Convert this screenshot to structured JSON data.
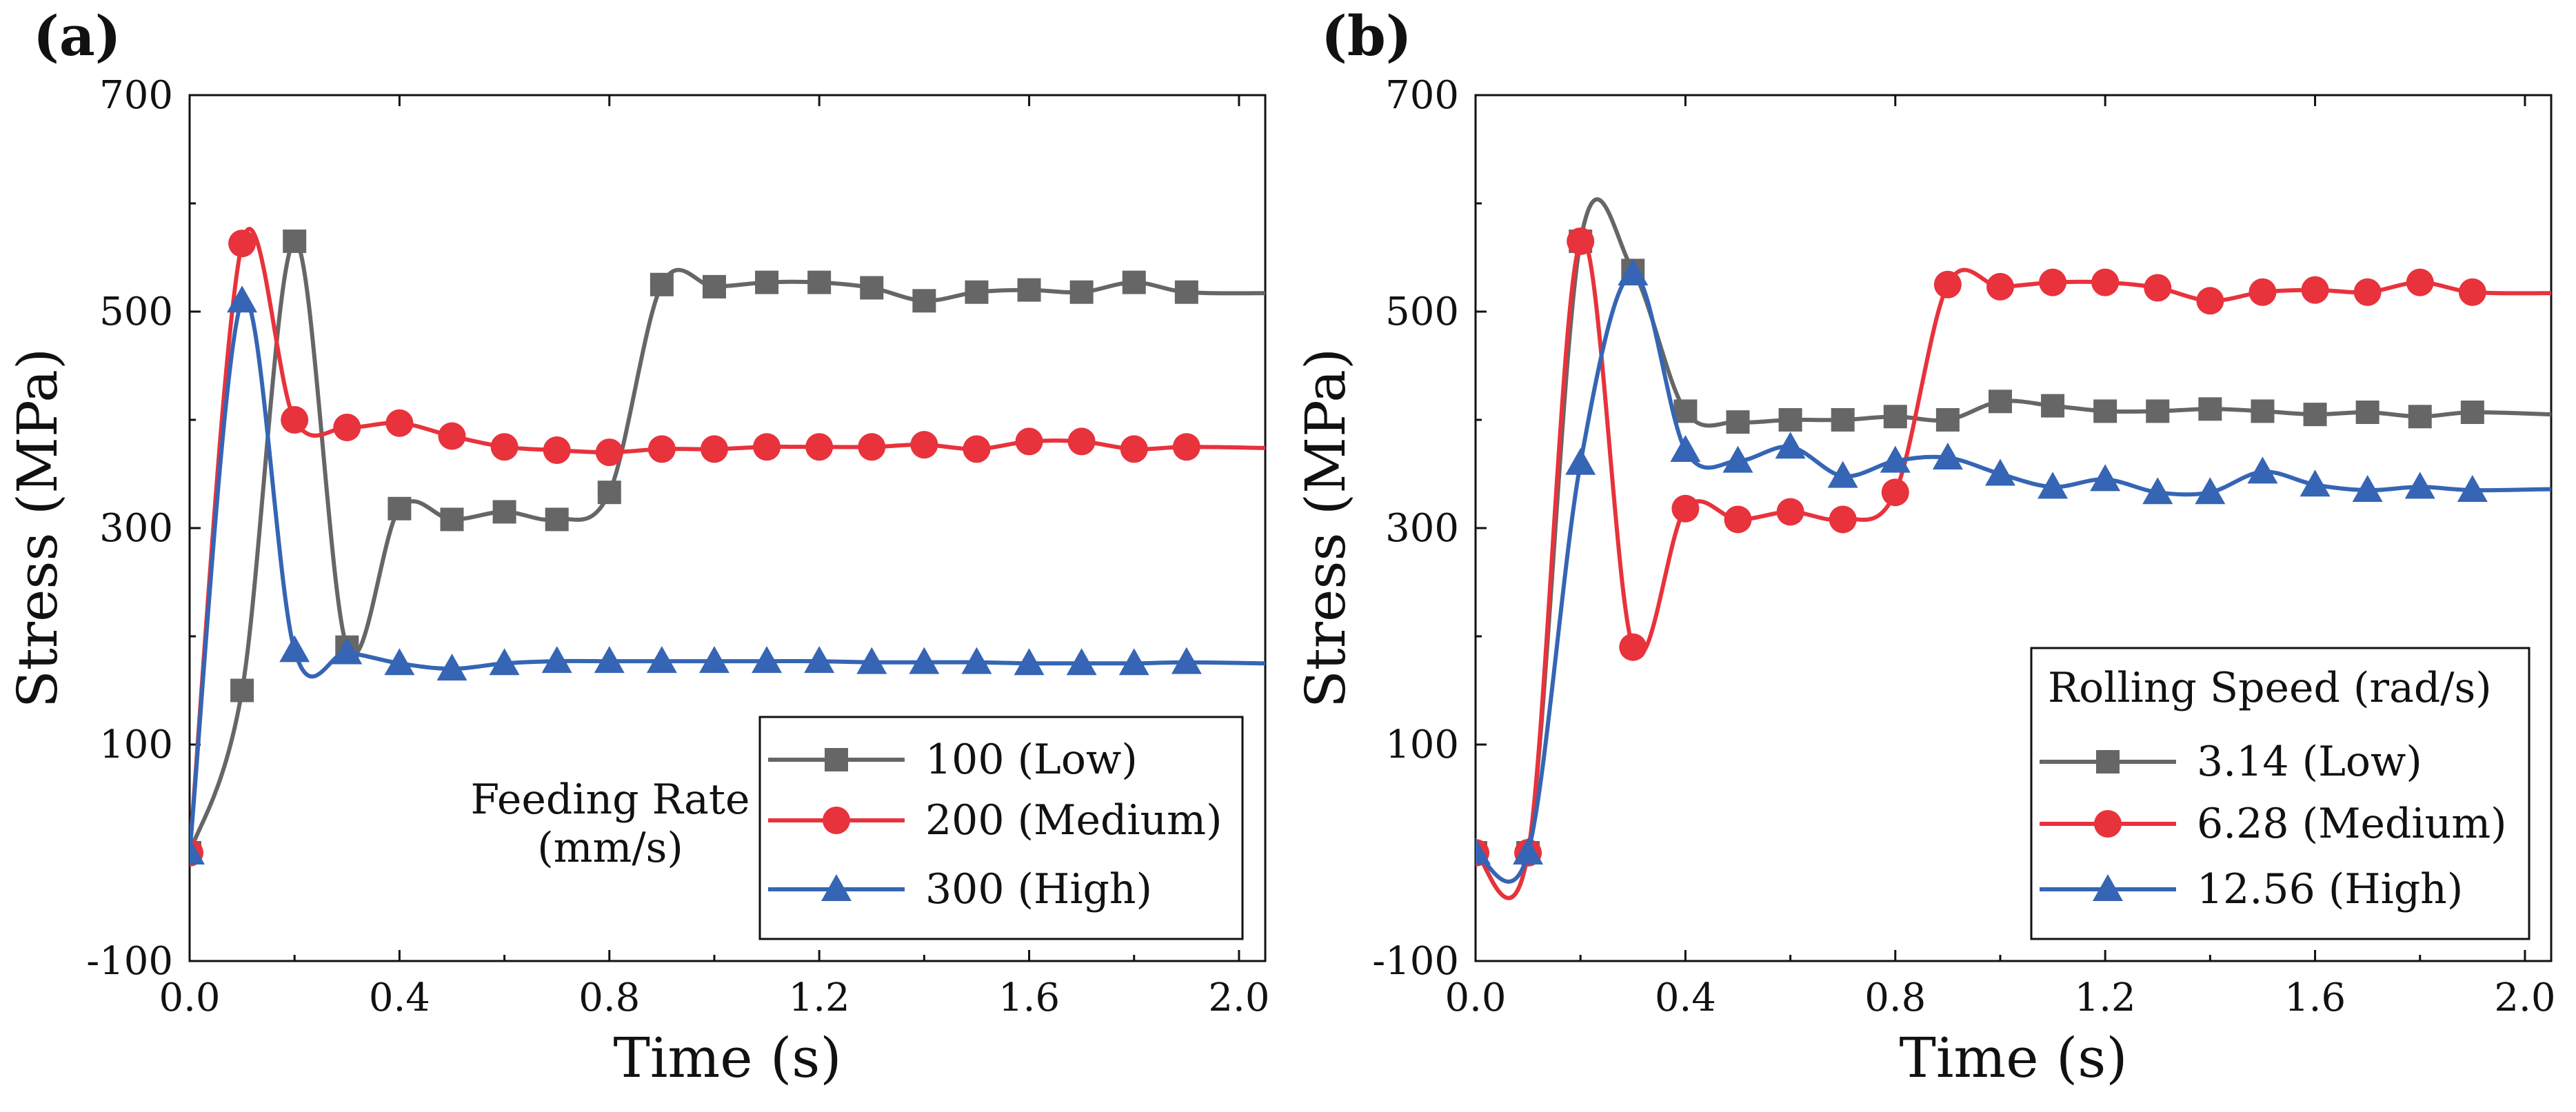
{
  "chart_data": [
    {
      "type": "line",
      "panel_label": "(a)",
      "xlabel": "Time (s)",
      "ylabel": "Stress (MPa)",
      "xlim": [
        0,
        2.05
      ],
      "ylim": [
        -100,
        700
      ],
      "xticks": [
        0,
        0.4,
        0.8,
        1.2,
        1.6,
        2.0
      ],
      "xtick_labels": [
        "0.0",
        "0.4",
        "0.8",
        "1.2",
        "1.6",
        "2.0"
      ],
      "yticks": [
        -100,
        100,
        300,
        500,
        700
      ],
      "ytick_labels": [
        "-100",
        "100",
        "300",
        "500",
        "700"
      ],
      "legend": {
        "title": "Feeding Rate (mm/s)",
        "title_lines": [
          "Feeding Rate",
          "(mm/s)"
        ],
        "title_position": "left",
        "placement": "bottom-right"
      },
      "series": [
        {
          "name": "100 (Low)",
          "color": "#666666",
          "marker": "square",
          "x": [
            0,
            0.1,
            0.2,
            0.3,
            0.4,
            0.5,
            0.6,
            0.7,
            0.8,
            0.9,
            1.0,
            1.1,
            1.2,
            1.3,
            1.4,
            1.5,
            1.6,
            1.7,
            1.8,
            1.9
          ],
          "values": [
            0,
            150,
            565,
            190,
            318,
            308,
            315,
            308,
            333,
            525,
            523,
            527,
            527,
            522,
            510,
            518,
            520,
            518,
            527,
            518
          ],
          "end_value": 517
        },
        {
          "name": "200 (Medium)",
          "color": "#e8323c",
          "marker": "circle",
          "x": [
            0,
            0.1,
            0.2,
            0.3,
            0.4,
            0.5,
            0.6,
            0.7,
            0.8,
            0.9,
            1.0,
            1.1,
            1.2,
            1.3,
            1.4,
            1.5,
            1.6,
            1.7,
            1.8,
            1.9
          ],
          "values": [
            0,
            563,
            400,
            393,
            397,
            385,
            375,
            372,
            370,
            373,
            373,
            375,
            375,
            375,
            377,
            373,
            380,
            380,
            373,
            375
          ],
          "end_value": 374
        },
        {
          "name": "300 (High)",
          "color": "#3565b4",
          "marker": "triangle",
          "x": [
            0,
            0.1,
            0.2,
            0.3,
            0.4,
            0.5,
            0.6,
            0.7,
            0.8,
            0.9,
            1.0,
            1.1,
            1.2,
            1.3,
            1.4,
            1.5,
            1.6,
            1.7,
            1.8,
            1.9
          ],
          "values": [
            0,
            510,
            187,
            185,
            175,
            170,
            175,
            177,
            177,
            177,
            177,
            177,
            177,
            176,
            176,
            176,
            175,
            175,
            175,
            176
          ],
          "end_value": 175
        }
      ]
    },
    {
      "type": "line",
      "panel_label": "(b)",
      "xlabel": "Time (s)",
      "ylabel": "Stress (MPa)",
      "xlim": [
        0,
        2.05
      ],
      "ylim": [
        -100,
        700
      ],
      "xticks": [
        0,
        0.4,
        0.8,
        1.2,
        1.6,
        2.0
      ],
      "xtick_labels": [
        "0.0",
        "0.4",
        "0.8",
        "1.2",
        "1.6",
        "2.0"
      ],
      "yticks": [
        -100,
        100,
        300,
        500,
        700
      ],
      "ytick_labels": [
        "-100",
        "100",
        "300",
        "500",
        "700"
      ],
      "legend": {
        "title": "Rolling Speed (rad/s)",
        "title_lines": [
          "Rolling Speed (rad/s)"
        ],
        "title_position": "top",
        "placement": "bottom-right"
      },
      "series": [
        {
          "name": "3.14 (Low)",
          "color": "#666666",
          "marker": "square",
          "x": [
            0,
            0.1,
            0.2,
            0.3,
            0.4,
            0.5,
            0.6,
            0.7,
            0.8,
            0.9,
            1.0,
            1.1,
            1.2,
            1.3,
            1.4,
            1.5,
            1.6,
            1.7,
            1.8,
            1.9
          ],
          "values": [
            0,
            0,
            565,
            538,
            408,
            398,
            400,
            400,
            403,
            400,
            417,
            413,
            408,
            408,
            410,
            408,
            405,
            407,
            403,
            407
          ],
          "end_value": 405
        },
        {
          "name": "6.28 (Medium)",
          "color": "#e8323c",
          "marker": "circle",
          "x": [
            0,
            0.1,
            0.2,
            0.3,
            0.4,
            0.5,
            0.6,
            0.7,
            0.8,
            0.9,
            1.0,
            1.1,
            1.2,
            1.3,
            1.4,
            1.5,
            1.6,
            1.7,
            1.8,
            1.9
          ],
          "values": [
            0,
            0,
            565,
            190,
            318,
            308,
            315,
            308,
            333,
            525,
            523,
            527,
            527,
            522,
            510,
            518,
            520,
            518,
            527,
            518
          ],
          "end_value": 517
        },
        {
          "name": "12.56 (High)",
          "color": "#3565b4",
          "marker": "triangle",
          "x": [
            0,
            0.1,
            0.2,
            0.3,
            0.4,
            0.5,
            0.6,
            0.7,
            0.8,
            0.9,
            1.0,
            1.1,
            1.2,
            1.3,
            1.4,
            1.5,
            1.6,
            1.7,
            1.8,
            1.9
          ],
          "values": [
            0,
            0,
            360,
            535,
            372,
            362,
            375,
            348,
            362,
            365,
            350,
            338,
            345,
            333,
            333,
            352,
            340,
            335,
            338,
            335
          ],
          "end_value": 336
        }
      ]
    }
  ]
}
